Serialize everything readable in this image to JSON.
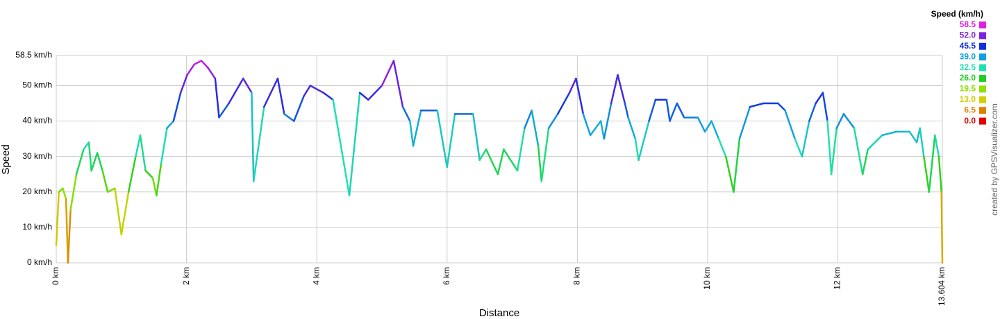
{
  "chart_data": {
    "type": "line",
    "xlabel": "Distance",
    "ylabel": "Speed",
    "credit": "created by GPSVisualizer.com",
    "legend": {
      "title": "Speed (km/h)",
      "position": "top-right",
      "entries": [
        {
          "value": 58.5,
          "label": "58.5",
          "color": "#e020e0"
        },
        {
          "value": 52,
          "label": "52.0",
          "color": "#8020e0"
        },
        {
          "value": 45.5,
          "label": "45.5",
          "color": "#1030e0"
        },
        {
          "value": 39,
          "label": "39.0",
          "color": "#10a0e0"
        },
        {
          "value": 32.5,
          "label": "32.5",
          "color": "#20e0b0"
        },
        {
          "value": 26,
          "label": "26.0",
          "color": "#20d020"
        },
        {
          "value": 19.5,
          "label": "19.5",
          "color": "#90e000"
        },
        {
          "value": 13,
          "label": "13.0",
          "color": "#d0d000"
        },
        {
          "value": 6.5,
          "label": "6.5",
          "color": "#e08000"
        },
        {
          "value": 0,
          "label": "0.0",
          "color": "#e00000"
        }
      ]
    },
    "grid": true,
    "xlim": [
      0,
      13.604
    ],
    "xticks": [
      {
        "value": 0,
        "label": "0 km"
      },
      {
        "value": 2,
        "label": "2 km"
      },
      {
        "value": 4,
        "label": "4 km"
      },
      {
        "value": 6,
        "label": "6 km"
      },
      {
        "value": 8,
        "label": "8 km"
      },
      {
        "value": 10,
        "label": "10 km"
      },
      {
        "value": 12,
        "label": "12 km"
      },
      {
        "value": 13.604,
        "label": "13.604 km"
      }
    ],
    "ylim": [
      0,
      58.5
    ],
    "yticks": [
      {
        "value": 0,
        "label": "0 km/h"
      },
      {
        "value": 10,
        "label": "10 km/h"
      },
      {
        "value": 20,
        "label": "20 km/h"
      },
      {
        "value": 30,
        "label": "30 km/h"
      },
      {
        "value": 40,
        "label": "40 km/h"
      },
      {
        "value": 50,
        "label": "50 km/h"
      },
      {
        "value": 58.5,
        "label": "58.5 km/h"
      }
    ],
    "series": [
      {
        "name": "Speed",
        "x": [
          0,
          0.04,
          0.1,
          0.15,
          0.18,
          0.22,
          0.31,
          0.42,
          0.5,
          0.54,
          0.63,
          0.71,
          0.79,
          0.9,
          1.0,
          1.11,
          1.22,
          1.29,
          1.37,
          1.48,
          1.54,
          1.61,
          1.7,
          1.8,
          1.91,
          2.01,
          2.12,
          2.23,
          2.33,
          2.44,
          2.5,
          2.65,
          2.87,
          3.0,
          3.03,
          3.19,
          3.4,
          3.5,
          3.65,
          3.8,
          3.9,
          4.1,
          4.25,
          4.5,
          4.66,
          4.79,
          5.0,
          5.18,
          5.32,
          5.43,
          5.48,
          5.6,
          5.85,
          6.0,
          6.12,
          6.4,
          6.5,
          6.6,
          6.78,
          6.87,
          7.08,
          7.19,
          7.3,
          7.4,
          7.45,
          7.56,
          7.7,
          7.88,
          7.98,
          8.09,
          8.2,
          8.36,
          8.41,
          8.52,
          8.62,
          8.73,
          8.78,
          8.89,
          8.94,
          9.1,
          9.2,
          9.37,
          9.42,
          9.53,
          9.64,
          9.85,
          9.96,
          10.06,
          10.17,
          10.28,
          10.4,
          10.49,
          10.65,
          10.86,
          11.08,
          11.19,
          11.34,
          11.45,
          11.56,
          11.66,
          11.77,
          11.84,
          11.9,
          11.98,
          12.09,
          12.25,
          12.38,
          12.46,
          12.68,
          12.9,
          13.1,
          13.21,
          13.26,
          13.32,
          13.4,
          13.49,
          13.55,
          13.59,
          13.604
        ],
        "values": [
          5,
          20,
          21,
          18,
          0,
          15,
          25,
          32,
          34,
          26,
          31,
          26,
          20,
          21,
          8,
          20,
          30,
          36,
          26,
          24,
          19,
          28,
          38,
          40,
          48,
          53,
          56,
          57,
          55,
          52,
          41,
          45,
          52,
          48,
          23,
          44,
          52,
          42,
          40,
          47,
          50,
          48,
          46,
          19,
          48,
          46,
          50,
          57,
          44,
          40,
          33,
          43,
          43,
          27,
          42,
          42,
          29,
          32,
          25,
          32,
          26,
          38,
          43,
          33,
          23,
          38,
          42,
          48,
          52,
          42,
          36,
          40,
          35,
          45,
          53,
          45,
          41,
          35,
          29,
          40,
          46,
          46,
          40,
          45,
          41,
          41,
          37,
          40,
          35,
          30,
          20,
          35,
          44,
          45,
          45,
          43,
          35,
          30,
          40,
          45,
          48,
          40,
          25,
          38,
          42,
          38,
          25,
          32,
          36,
          37,
          37,
          34,
          38,
          30,
          20,
          36,
          30,
          20,
          0
        ]
      }
    ]
  }
}
